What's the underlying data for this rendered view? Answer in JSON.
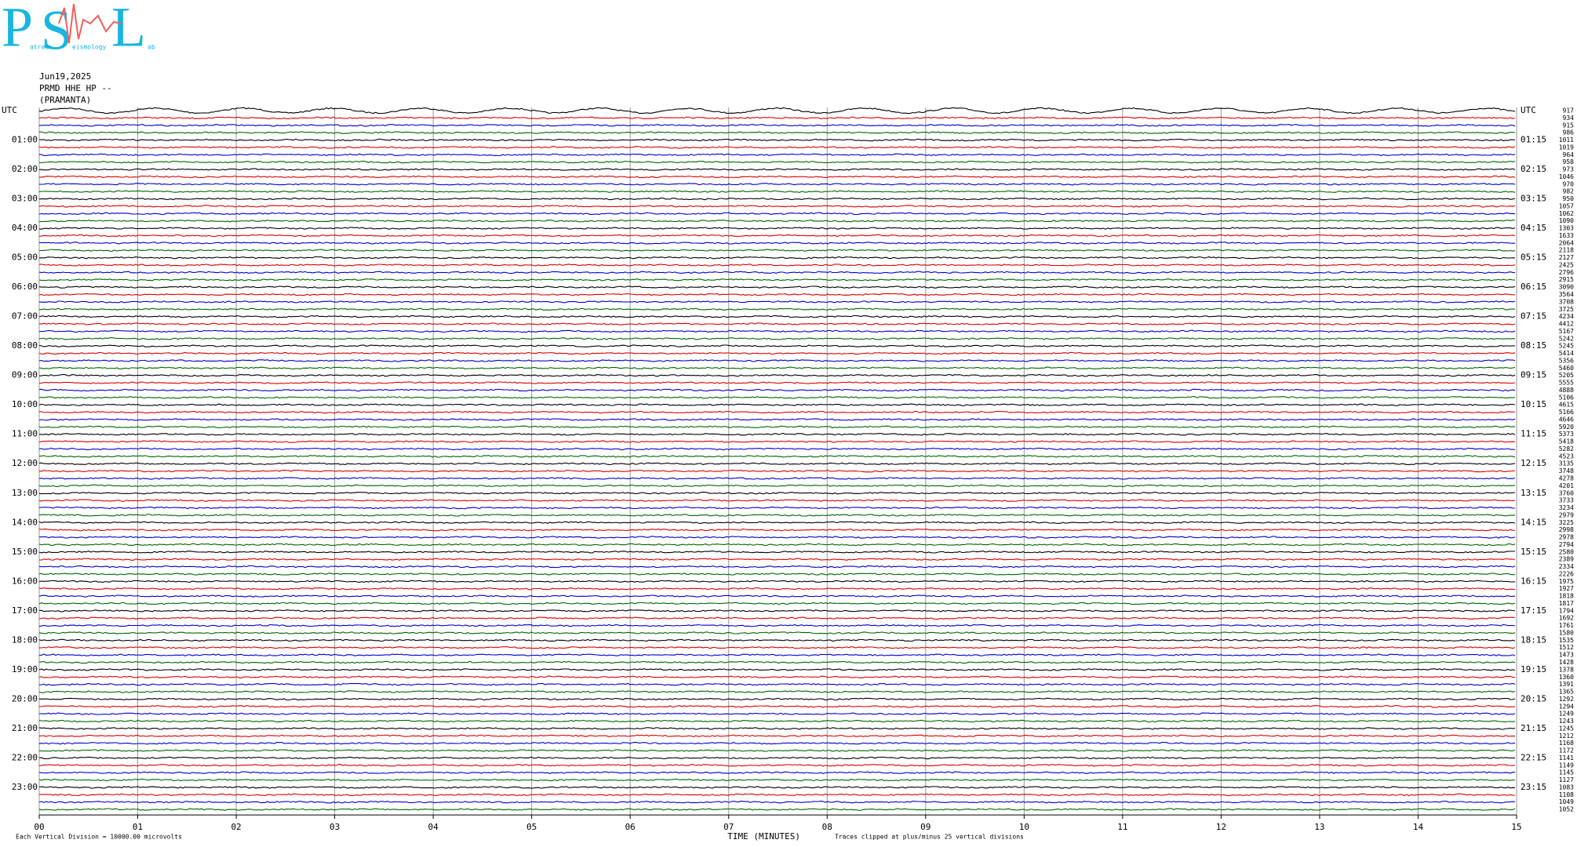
{
  "header": {
    "logo": {
      "letters": [
        "P",
        "S",
        "L"
      ],
      "words": [
        "atras",
        "eismology",
        "ab"
      ]
    },
    "date": "Jun19,2025",
    "station": "PRMD HHE HP --",
    "site": "(PRAMANTA)"
  },
  "left_labels": [
    "UTC",
    "01:00",
    "02:00",
    "03:00",
    "04:00",
    "05:00",
    "06:00",
    "07:00",
    "08:00",
    "09:00",
    "10:00",
    "11:00",
    "12:00",
    "13:00",
    "14:00",
    "15:00",
    "16:00",
    "17:00",
    "18:00",
    "19:00",
    "20:00",
    "21:00",
    "22:00",
    "23:00"
  ],
  "right_labels": [
    "UTC",
    "01:15",
    "02:15",
    "03:15",
    "04:15",
    "05:15",
    "06:15",
    "07:15",
    "08:15",
    "09:15",
    "10:15",
    "11:15",
    "12:15",
    "13:15",
    "14:15",
    "15:15",
    "16:15",
    "17:15",
    "18:15",
    "19:15",
    "20:15",
    "21:15",
    "22:15",
    "23:15"
  ],
  "trace_values": [
    917,
    934,
    915,
    986,
    1011,
    1019,
    964,
    958,
    973,
    1046,
    970,
    982,
    950,
    1057,
    1062,
    1090,
    1303,
    1633,
    2064,
    2118,
    2127,
    2425,
    2796,
    2915,
    3090,
    3564,
    3708,
    3725,
    4234,
    4412,
    5167,
    5242,
    5245,
    5414,
    5356,
    5460,
    5205,
    5555,
    4888,
    5106,
    4615,
    5166,
    4646,
    5920,
    5373,
    5418,
    5282,
    4523,
    3135,
    3748,
    4278,
    4201,
    3760,
    3733,
    3234,
    2979,
    3225,
    2998,
    2978,
    2794,
    2580,
    2389,
    2334,
    2226,
    1975,
    1927,
    1818,
    1817,
    1794,
    1692,
    1761,
    1580,
    1535,
    1512,
    1473,
    1428,
    1378,
    1360,
    1391,
    1365,
    1292,
    1294,
    1249,
    1243,
    1245,
    1212,
    1168,
    1172,
    1141,
    1149,
    1145,
    1127,
    1083,
    1108,
    1049,
    1052
  ],
  "trace_colors": [
    "#000000",
    "#dd0000",
    "#0000cc",
    "#006600"
  ],
  "x_axis": {
    "ticks": [
      "00",
      "01",
      "02",
      "03",
      "04",
      "05",
      "06",
      "07",
      "08",
      "09",
      "10",
      "11",
      "12",
      "13",
      "14",
      "15"
    ],
    "title": "TIME (MINUTES)",
    "note": "Traces clipped at plus/minus 25 vertical divisions"
  },
  "scale_note": "Each Vertical Division = 10000.00 microvolts"
}
